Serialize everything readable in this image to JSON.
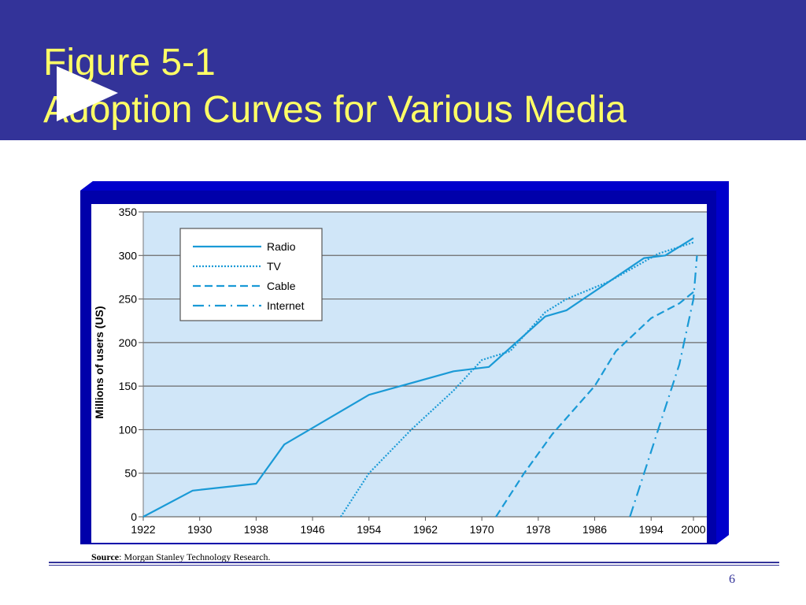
{
  "slide": {
    "title_line1": "Figure 5-1",
    "title_line2": "Adoption Curves for Various Media",
    "source_label": "Source",
    "source_text": ": Morgan Stanley Technology Research.",
    "page_number": "6"
  },
  "colors": {
    "header": "#333399",
    "title": "#ffff66",
    "plot_bg": "#d0e6f8",
    "series": "#1a9ad6"
  },
  "chart_data": {
    "type": "line",
    "title": "",
    "xlabel": "",
    "ylabel": "Millions of users (US)",
    "xlim": [
      1922,
      2000
    ],
    "ylim": [
      0,
      350
    ],
    "xticks": [
      1922,
      1930,
      1938,
      1946,
      1954,
      1962,
      1970,
      1978,
      1986,
      1994,
      2000
    ],
    "yticks": [
      0,
      50,
      100,
      150,
      200,
      250,
      300,
      350
    ],
    "grid": "horizontal",
    "legend_position": "top-left",
    "series": [
      {
        "name": "Radio",
        "style": "solid",
        "points": [
          [
            1922,
            0
          ],
          [
            1929,
            30
          ],
          [
            1938,
            38
          ],
          [
            1942,
            83
          ],
          [
            1954,
            140
          ],
          [
            1966,
            167
          ],
          [
            1971,
            172
          ],
          [
            1979,
            230
          ],
          [
            1982,
            237
          ],
          [
            1993,
            297
          ],
          [
            1996,
            300
          ],
          [
            2000,
            320
          ]
        ]
      },
      {
        "name": "TV",
        "style": "dotted",
        "points": [
          [
            1950,
            0
          ],
          [
            1954,
            50
          ],
          [
            1960,
            100
          ],
          [
            1966,
            145
          ],
          [
            1970,
            180
          ],
          [
            1974,
            190
          ],
          [
            1979,
            235
          ],
          [
            1982,
            250
          ],
          [
            1988,
            270
          ],
          [
            1995,
            302
          ],
          [
            2000,
            315
          ]
        ]
      },
      {
        "name": "Cable",
        "style": "dashed",
        "points": [
          [
            1972,
            0
          ],
          [
            1976,
            50
          ],
          [
            1980,
            95
          ],
          [
            1986,
            150
          ],
          [
            1989,
            190
          ],
          [
            1994,
            228
          ],
          [
            1998,
            245
          ],
          [
            2000,
            258
          ]
        ]
      },
      {
        "name": "Internet",
        "style": "dash-dot",
        "points": [
          [
            1991,
            0
          ],
          [
            1993,
            50
          ],
          [
            1995,
            100
          ],
          [
            1998,
            175
          ],
          [
            2000,
            250
          ],
          [
            2000.5,
            300
          ]
        ]
      }
    ]
  }
}
